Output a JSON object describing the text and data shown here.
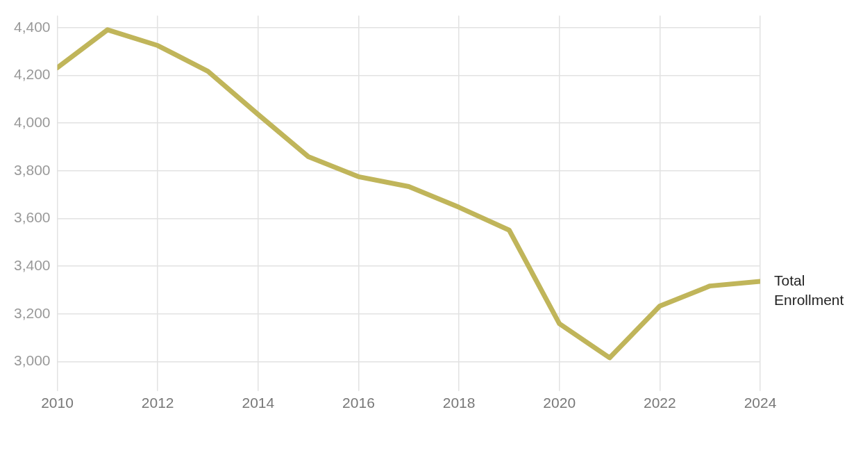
{
  "chart_data": {
    "type": "line",
    "x": [
      2010,
      2011,
      2012,
      2013,
      2014,
      2015,
      2016,
      2017,
      2018,
      2019,
      2020,
      2021,
      2022,
      2023,
      2024
    ],
    "series": [
      {
        "name": "Total Enrollment",
        "color": "#c0b55a",
        "values": [
          4232,
          4391,
          4325,
          4217,
          4036,
          3859,
          3775,
          3734,
          3647,
          3551,
          3159,
          3016,
          3233,
          3317,
          3336
        ]
      }
    ],
    "xlim": [
      2010,
      2024
    ],
    "xticks": [
      2010,
      2012,
      2014,
      2016,
      2018,
      2020,
      2022,
      2024
    ],
    "ylim": [
      2900,
      4450
    ],
    "yticks": [
      {
        "value": 3000,
        "label": "3,000"
      },
      {
        "value": 3200,
        "label": "3,200"
      },
      {
        "value": 3400,
        "label": "3,400"
      },
      {
        "value": 3600,
        "label": "3,600"
      },
      {
        "value": 3800,
        "label": "3,800"
      },
      {
        "value": 4000,
        "label": "4,000"
      },
      {
        "value": 4200,
        "label": "4,200"
      },
      {
        "value": 4400,
        "label": "4,400"
      }
    ],
    "grid": true,
    "legend": false,
    "marker": "none",
    "line_style": "solid"
  }
}
